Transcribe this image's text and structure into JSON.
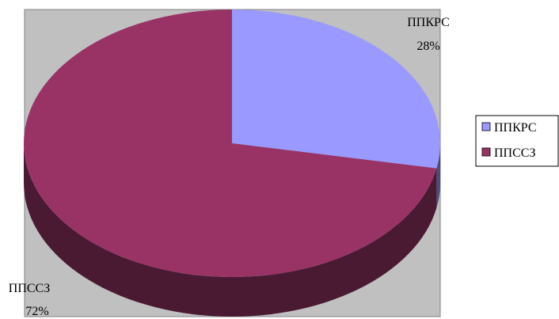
{
  "chart_data": {
    "type": "pie",
    "style": "3d",
    "title": "",
    "categories": [
      "ППКРС",
      "ППССЗ"
    ],
    "values": [
      28,
      72
    ],
    "value_labels": [
      "28%",
      "72%"
    ],
    "colors": {
      "ППКРС": {
        "top": "#9999ff",
        "side": "#4a4a7f"
      },
      "ППССЗ": {
        "top": "#993366",
        "side": "#4a1a33"
      }
    },
    "plot_area_background": "#c0c0c0",
    "legend": {
      "position": "right",
      "entries": [
        "ППКРС",
        "ППССЗ"
      ]
    }
  }
}
